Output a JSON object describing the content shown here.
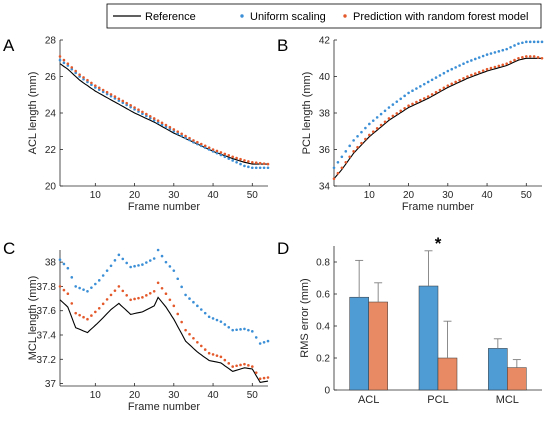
{
  "colors": {
    "reference": "#000000",
    "uniform": "#3b8fd6",
    "prediction": "#e4592b",
    "bar_uniform": "#4f9bd3",
    "bar_prediction": "#e88b64",
    "axis": "#262626"
  },
  "legend": {
    "labels": [
      "Reference",
      "Uniform scaling",
      "Prediction with random forest model"
    ]
  },
  "chart_data": [
    {
      "panel": "A",
      "type": "line",
      "xlabel": "Frame number",
      "ylabel": "ACL length (mm)",
      "xlim": [
        1,
        54
      ],
      "ylim": [
        20,
        28
      ],
      "xticks": [
        10,
        20,
        30,
        40,
        50
      ],
      "yticks": [
        20,
        22,
        24,
        26,
        28
      ],
      "series": [
        {
          "name": "Reference",
          "style": "line",
          "color": "#000000",
          "x": [
            1,
            3,
            6,
            10,
            15,
            20,
            25,
            30,
            35,
            40,
            45,
            48,
            50,
            54
          ],
          "y": [
            26.7,
            26.4,
            25.8,
            25.2,
            24.6,
            24.0,
            23.5,
            22.9,
            22.4,
            21.9,
            21.5,
            21.3,
            21.2,
            21.2
          ]
        },
        {
          "name": "Uniform scaling",
          "style": "dots",
          "color": "#3b8fd6",
          "x": [
            1,
            3,
            6,
            10,
            15,
            20,
            25,
            30,
            35,
            40,
            45,
            48,
            50,
            54
          ],
          "y": [
            26.9,
            26.6,
            26.0,
            25.4,
            24.8,
            24.2,
            23.6,
            23.0,
            22.4,
            21.9,
            21.4,
            21.1,
            21.0,
            21.0
          ]
        },
        {
          "name": "Prediction with random forest model",
          "style": "dots",
          "color": "#e4592b",
          "x": [
            1,
            3,
            6,
            10,
            15,
            20,
            25,
            30,
            35,
            40,
            45,
            48,
            50,
            54
          ],
          "y": [
            27.1,
            26.7,
            26.1,
            25.5,
            24.9,
            24.3,
            23.7,
            23.1,
            22.5,
            22.0,
            21.6,
            21.4,
            21.3,
            21.2
          ]
        }
      ]
    },
    {
      "panel": "B",
      "type": "line",
      "xlabel": "Frame number",
      "ylabel": "PCL length (mm)",
      "xlim": [
        1,
        54
      ],
      "ylim": [
        34,
        42
      ],
      "xticks": [
        10,
        20,
        30,
        40,
        50
      ],
      "yticks": [
        34,
        36,
        38,
        40,
        42
      ],
      "series": [
        {
          "name": "Reference",
          "style": "line",
          "color": "#000000",
          "x": [
            1,
            3,
            6,
            10,
            15,
            20,
            25,
            30,
            35,
            40,
            45,
            48,
            50,
            52,
            54
          ],
          "y": [
            34.4,
            34.9,
            35.8,
            36.7,
            37.6,
            38.3,
            38.8,
            39.4,
            39.9,
            40.3,
            40.6,
            40.9,
            41.0,
            41.0,
            41.0
          ]
        },
        {
          "name": "Uniform scaling",
          "style": "dots",
          "color": "#3b8fd6",
          "x": [
            1,
            3,
            6,
            10,
            15,
            20,
            25,
            30,
            35,
            40,
            45,
            48,
            50,
            52,
            54
          ],
          "y": [
            35.0,
            35.6,
            36.5,
            37.4,
            38.3,
            39.1,
            39.7,
            40.3,
            40.8,
            41.2,
            41.5,
            41.8,
            41.9,
            41.9,
            41.9
          ]
        },
        {
          "name": "Prediction with random forest model",
          "style": "dots",
          "color": "#e4592b",
          "x": [
            1,
            3,
            6,
            10,
            15,
            20,
            25,
            30,
            35,
            40,
            45,
            48,
            50,
            52,
            54
          ],
          "y": [
            34.4,
            35.0,
            35.9,
            36.8,
            37.7,
            38.4,
            38.9,
            39.5,
            40.0,
            40.4,
            40.7,
            41.0,
            41.1,
            41.1,
            41.0
          ]
        }
      ]
    },
    {
      "panel": "C",
      "type": "line",
      "xlabel": "Frame number",
      "ylabel": "MCL length (mm)",
      "xlim": [
        1,
        54
      ],
      "ylim": [
        36.98,
        38.1
      ],
      "xticks": [
        10,
        20,
        30,
        40,
        50
      ],
      "yticks": [
        37,
        37.2,
        37.4,
        37.6,
        37.8,
        38
      ],
      "series": [
        {
          "name": "Reference",
          "style": "line",
          "color": "#000000",
          "x": [
            1,
            3,
            5,
            8,
            11,
            14,
            16,
            19,
            22,
            25,
            26,
            28,
            30,
            33,
            36,
            39,
            42,
            45,
            48,
            50,
            52,
            54
          ],
          "y": [
            37.69,
            37.63,
            37.46,
            37.42,
            37.51,
            37.61,
            37.66,
            37.57,
            37.59,
            37.64,
            37.71,
            37.63,
            37.53,
            37.35,
            37.26,
            37.19,
            37.17,
            37.1,
            37.13,
            37.12,
            37.01,
            37.02
          ]
        },
        {
          "name": "Uniform scaling",
          "style": "dots",
          "color": "#3b8fd6",
          "x": [
            1,
            3,
            5,
            8,
            11,
            14,
            16,
            19,
            22,
            25,
            26,
            28,
            30,
            33,
            36,
            39,
            42,
            45,
            48,
            50,
            52,
            54
          ],
          "y": [
            38.02,
            37.95,
            37.8,
            37.76,
            37.85,
            37.97,
            38.06,
            37.96,
            37.98,
            38.03,
            38.1,
            38.0,
            37.93,
            37.73,
            37.64,
            37.55,
            37.51,
            37.44,
            37.45,
            37.43,
            37.33,
            37.35
          ]
        },
        {
          "name": "Prediction with random forest model",
          "style": "dots",
          "color": "#e4592b",
          "x": [
            1,
            3,
            5,
            8,
            11,
            14,
            16,
            19,
            22,
            25,
            26,
            28,
            30,
            33,
            36,
            39,
            42,
            45,
            48,
            50,
            52,
            54
          ],
          "y": [
            37.8,
            37.74,
            37.58,
            37.53,
            37.62,
            37.73,
            37.8,
            37.69,
            37.71,
            37.76,
            37.83,
            37.74,
            37.64,
            37.44,
            37.34,
            37.25,
            37.22,
            37.14,
            37.16,
            37.14,
            37.04,
            37.05
          ]
        }
      ]
    },
    {
      "panel": "D",
      "type": "bar",
      "ylabel": "RMS error (mm)",
      "categories": [
        "ACL",
        "PCL",
        "MCL"
      ],
      "ylim": [
        0,
        0.9
      ],
      "yticks": [
        0,
        0.2,
        0.4,
        0.6,
        0.8
      ],
      "series": [
        {
          "name": "Uniform scaling",
          "color": "#4f9bd3",
          "values": [
            0.58,
            0.65,
            0.26
          ],
          "errors": [
            0.23,
            0.22,
            0.06
          ]
        },
        {
          "name": "Prediction with random forest model",
          "color": "#e88b64",
          "values": [
            0.55,
            0.2,
            0.14
          ],
          "errors": [
            0.12,
            0.23,
            0.05
          ]
        }
      ],
      "annotation": "*"
    }
  ]
}
